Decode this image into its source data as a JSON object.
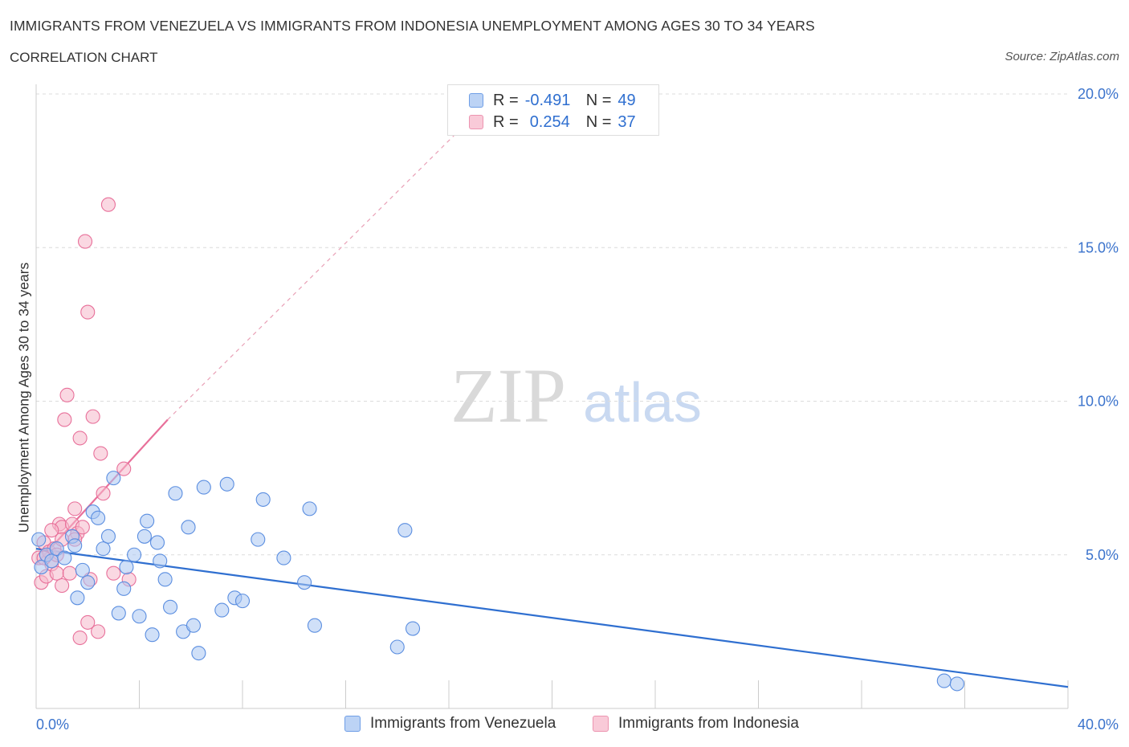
{
  "header": {
    "title": "IMMIGRANTS FROM VENEZUELA VS IMMIGRANTS FROM INDONESIA UNEMPLOYMENT AMONG AGES 30 TO 34 YEARS",
    "subtitle": "CORRELATION CHART",
    "source": "Source: ZipAtlas.com"
  },
  "watermark": {
    "zip": "ZIP",
    "atlas": "atlas"
  },
  "legend": {
    "rows": [
      {
        "r_label": "R =",
        "r_value": "-0.491",
        "n_label": "N =",
        "n_value": "49",
        "color": "#a9c7f2"
      },
      {
        "r_label": "R =",
        "r_value": "0.254",
        "n_label": "N =",
        "n_value": "37",
        "color": "#f6b8cb"
      }
    ]
  },
  "chart_data": {
    "type": "scatter",
    "title": "IMMIGRANTS FROM VENEZUELA VS IMMIGRANTS FROM INDONESIA UNEMPLOYMENT AMONG AGES 30 TO 34 YEARS",
    "subtitle": "CORRELATION CHART",
    "xlabel": "",
    "ylabel": "Unemployment Among Ages 30 to 34 years",
    "xlim": [
      0,
      40
    ],
    "ylim": [
      0,
      20
    ],
    "x_tick_labels": [
      "0.0%",
      "40.0%"
    ],
    "y_tick_labels": [
      "5.0%",
      "10.0%",
      "15.0%",
      "20.0%"
    ],
    "y_ticks": [
      5,
      10,
      15,
      20
    ],
    "grid": "horizontal dashed",
    "legend_position": "top-center",
    "series": [
      {
        "name": "Immigrants from Venezuela",
        "color": "#5b8ee0",
        "fill": "#a9c7f2",
        "trend": {
          "x": [
            0,
            40
          ],
          "y": [
            5.2,
            0.7
          ]
        },
        "points": [
          [
            0.1,
            5.5
          ],
          [
            0.2,
            4.6
          ],
          [
            0.4,
            5.0
          ],
          [
            0.6,
            4.8
          ],
          [
            0.8,
            5.2
          ],
          [
            1.1,
            4.9
          ],
          [
            1.4,
            5.6
          ],
          [
            1.5,
            5.3
          ],
          [
            1.6,
            3.6
          ],
          [
            1.8,
            4.5
          ],
          [
            2.0,
            4.1
          ],
          [
            2.2,
            6.4
          ],
          [
            2.4,
            6.2
          ],
          [
            2.6,
            5.2
          ],
          [
            2.8,
            5.6
          ],
          [
            3.0,
            7.5
          ],
          [
            3.2,
            3.1
          ],
          [
            3.4,
            3.9
          ],
          [
            3.5,
            4.6
          ],
          [
            3.8,
            5.0
          ],
          [
            4.0,
            3.0
          ],
          [
            4.2,
            5.6
          ],
          [
            4.3,
            6.1
          ],
          [
            4.5,
            2.4
          ],
          [
            4.7,
            5.4
          ],
          [
            4.8,
            4.8
          ],
          [
            5.0,
            4.2
          ],
          [
            5.2,
            3.3
          ],
          [
            5.4,
            7.0
          ],
          [
            5.7,
            2.5
          ],
          [
            5.9,
            5.9
          ],
          [
            6.1,
            2.7
          ],
          [
            6.3,
            1.8
          ],
          [
            6.5,
            7.2
          ],
          [
            7.2,
            3.2
          ],
          [
            7.4,
            7.3
          ],
          [
            7.7,
            3.6
          ],
          [
            8.0,
            3.5
          ],
          [
            8.6,
            5.5
          ],
          [
            8.8,
            6.8
          ],
          [
            9.6,
            4.9
          ],
          [
            10.4,
            4.1
          ],
          [
            10.6,
            6.5
          ],
          [
            10.8,
            2.7
          ],
          [
            14.0,
            2.0
          ],
          [
            14.3,
            5.8
          ],
          [
            14.6,
            2.6
          ],
          [
            35.2,
            0.9
          ],
          [
            35.7,
            0.8
          ]
        ]
      },
      {
        "name": "Immigrants from Indonesia",
        "color": "#e8709a",
        "fill": "#f6b8cb",
        "trend": {
          "x": [
            0,
            5.1
          ],
          "y": [
            4.7,
            9.4
          ]
        },
        "trend_extension": {
          "x": [
            5.1,
            16.5
          ],
          "y": [
            9.4,
            18.9
          ]
        },
        "points": [
          [
            0.1,
            4.9
          ],
          [
            0.2,
            4.1
          ],
          [
            0.3,
            5.4
          ],
          [
            0.4,
            4.3
          ],
          [
            0.5,
            5.1
          ],
          [
            0.6,
            4.7
          ],
          [
            0.7,
            5.2
          ],
          [
            0.8,
            4.4
          ],
          [
            0.9,
            6.0
          ],
          [
            1.0,
            5.9
          ],
          [
            1.0,
            4.0
          ],
          [
            1.1,
            9.4
          ],
          [
            1.2,
            10.2
          ],
          [
            1.3,
            4.4
          ],
          [
            1.4,
            6.0
          ],
          [
            1.5,
            6.5
          ],
          [
            1.6,
            5.7
          ],
          [
            1.7,
            8.8
          ],
          [
            1.8,
            5.9
          ],
          [
            1.9,
            15.2
          ],
          [
            2.0,
            12.9
          ],
          [
            2.1,
            4.2
          ],
          [
            2.2,
            9.5
          ],
          [
            2.0,
            2.8
          ],
          [
            1.5,
            5.5
          ],
          [
            1.7,
            2.3
          ],
          [
            2.4,
            2.5
          ],
          [
            2.5,
            8.3
          ],
          [
            2.6,
            7.0
          ],
          [
            2.8,
            16.4
          ],
          [
            3.0,
            4.4
          ],
          [
            3.4,
            7.8
          ],
          [
            3.6,
            4.2
          ],
          [
            0.6,
            5.8
          ],
          [
            1.0,
            5.5
          ],
          [
            0.3,
            4.9
          ],
          [
            0.8,
            5.0
          ]
        ]
      }
    ]
  },
  "bottom_legend": {
    "venezuela": "Immigrants from Venezuela",
    "indonesia": "Immigrants from Indonesia"
  }
}
